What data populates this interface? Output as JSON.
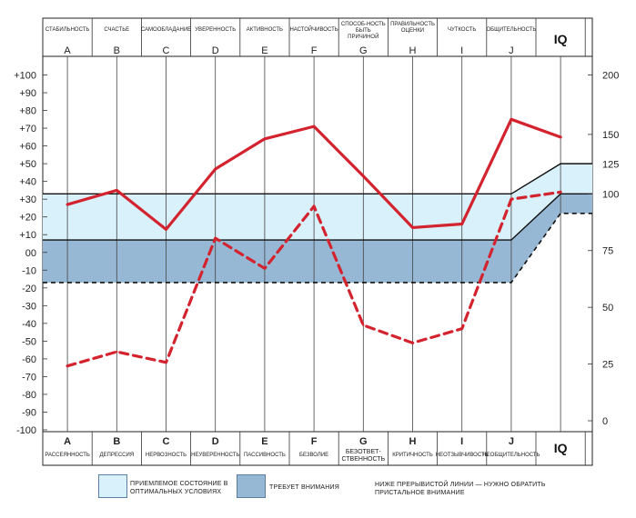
{
  "chart_data": {
    "type": "line",
    "columns": [
      "A",
      "B",
      "C",
      "D",
      "E",
      "F",
      "G",
      "H",
      "I",
      "J",
      "IQ"
    ],
    "top_labels": [
      "СТАБИЛЬНОСТЬ",
      "СЧАСТЬЕ",
      "САМООБЛАДАНИЕ",
      "УВЕРЕННОСТЬ",
      "АКТИВНОСТЬ",
      "НАСТОЙЧИВОСТЬ",
      "СПОСОБ-НОСТЬ БЫТЬ ПРИЧИНОЙ",
      "ПРАВИЛЬНОСТЬ ОЦЕНКИ",
      "ЧУТКОСТЬ",
      "ОБЩИТЕЛЬНОСТЬ"
    ],
    "top_letters": [
      "A",
      "B",
      "C",
      "D",
      "E",
      "F",
      "G",
      "H",
      "I",
      "J"
    ],
    "bottom_labels": [
      "РАССЕЯННОСТЬ",
      "ДЕПРЕССИЯ",
      "НЕРВОЗНОСТЬ",
      "НЕУВЕРЕННОСТЬ",
      "ПАССИВНОСТЬ",
      "БЕЗВОЛИЕ",
      "БЕЗОТВЕТ-СТВЕННОСТЬ",
      "КРИТИЧНОСТЬ",
      "НЕОТЗЫВЧИВОСТЬ",
      "НЕОБЩИТЕЛЬНОСТЬ"
    ],
    "iq_label": "IQ",
    "y_left": {
      "ticks": [
        "+100",
        "+90",
        "+80",
        "+70",
        "+60",
        "+50",
        "+40",
        "+30",
        "+20",
        "+10",
        "00",
        "-10",
        "-20",
        "-30",
        "-40",
        "-50",
        "-60",
        "-70",
        "-80",
        "-90",
        "-100"
      ],
      "ylim": [
        -100,
        100
      ]
    },
    "y_right": {
      "ticks": [
        "200",
        "150",
        "125",
        "100",
        "75",
        "50",
        "25",
        "0"
      ],
      "tick_values": [
        200,
        150,
        125,
        100,
        75,
        50,
        25,
        0
      ]
    },
    "zones": {
      "acceptable": {
        "upper": 33,
        "lower": 7,
        "upper_iq": 50,
        "lower_iq": 33,
        "color": "#d8f1fb"
      },
      "attention": {
        "upper": 7,
        "lower": -17,
        "upper_iq": 33,
        "lower_iq": 22,
        "color": "#97b8d4"
      }
    },
    "dashed_threshold": {
      "values": [
        -17,
        -17,
        -17,
        -17,
        -17,
        -17,
        -17,
        -17,
        -17,
        -17,
        22
      ]
    },
    "series": [
      {
        "style": "solid",
        "color": "#d3232e",
        "values": [
          27,
          35,
          13,
          47,
          64,
          71,
          43,
          14,
          16,
          75,
          65
        ]
      },
      {
        "style": "dashed",
        "color": "#d3232e",
        "values": [
          -64,
          -56,
          -62,
          8,
          -9,
          26,
          -41,
          -51,
          -43,
          30,
          34
        ]
      }
    ]
  },
  "legend": {
    "acceptable_label": "ПРИЕМЛЕМОЕ СОСТОЯНИЕ В ОПТИМАЛЬНЫХ УСЛОВИЯХ",
    "attention_label": "ТРЕБУЕТ ВНИМАНИЯ",
    "dashed_note": "НИЖЕ ПРЕРЫВИСТОЙ ЛИНИИ — НУЖНО ОБРАТИТЬ ПРИСТАЛЬНОЕ ВНИМАНИЕ",
    "acceptable_color": "#d8f1fb",
    "attention_color": "#97b8d4"
  }
}
